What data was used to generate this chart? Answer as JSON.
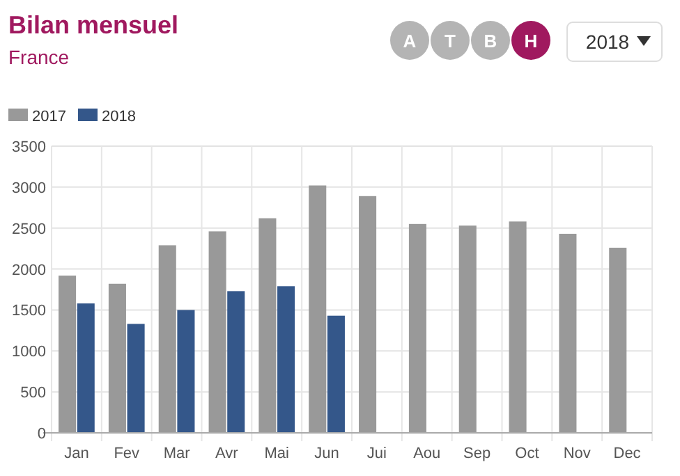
{
  "chart_data": {
    "type": "bar",
    "title": "Bilan mensuel",
    "subtitle": "France",
    "annotations": [
      "A",
      "T",
      "B",
      "H",
      "2018"
    ],
    "categories": [
      "Jan",
      "Fev",
      "Mar",
      "Avr",
      "Mai",
      "Jun",
      "Jui",
      "Aou",
      "Sep",
      "Oct",
      "Nov",
      "Dec"
    ],
    "series": [
      {
        "name": "2017",
        "color": "#999999",
        "values": [
          1920,
          1820,
          2290,
          2460,
          2620,
          3020,
          2890,
          2550,
          2530,
          2580,
          2430,
          2260
        ]
      },
      {
        "name": "2018",
        "color": "#34578a",
        "values": [
          1580,
          1330,
          1500,
          1730,
          1790,
          1430,
          null,
          null,
          null,
          null,
          null,
          null
        ]
      }
    ],
    "ylim": [
      0,
      3500
    ],
    "yticks": [
      0,
      500,
      1000,
      1500,
      2000,
      2500,
      3000,
      3500
    ],
    "grid": true,
    "legend": "top left"
  }
}
